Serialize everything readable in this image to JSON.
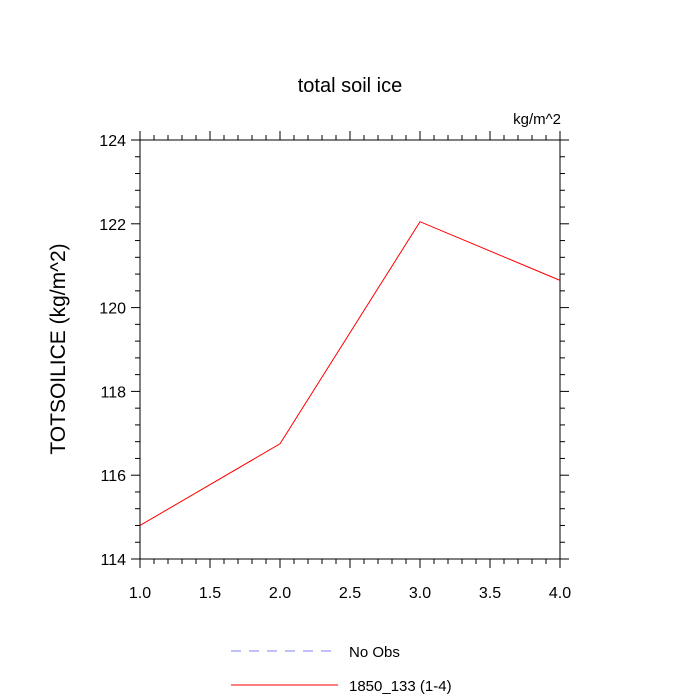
{
  "chart_data": {
    "type": "line",
    "title": "total soil ice",
    "units_label": "kg/m^2",
    "xlabel": "",
    "ylabel": "TOTSOILICE  (kg/m^2)",
    "xlim": [
      1.0,
      4.0
    ],
    "ylim": [
      114,
      124
    ],
    "x_ticks": [
      "1.0",
      "1.5",
      "2.0",
      "2.5",
      "3.0",
      "3.5",
      "4.0"
    ],
    "y_ticks": [
      "114",
      "116",
      "118",
      "120",
      "122",
      "124"
    ],
    "grid": false,
    "legend_position": "bottom-center",
    "series": [
      {
        "name": "1850_133 (1-4)",
        "color": "#ff0000",
        "style": "solid",
        "x": [
          1,
          2,
          3,
          4
        ],
        "y": [
          114.8,
          116.75,
          122.05,
          120.65
        ]
      }
    ],
    "legend": [
      {
        "label": "No Obs",
        "color": "#8080ff",
        "style": "dashed"
      },
      {
        "label": "1850_133 (1-4)",
        "color": "#ff0000",
        "style": "solid"
      }
    ]
  }
}
